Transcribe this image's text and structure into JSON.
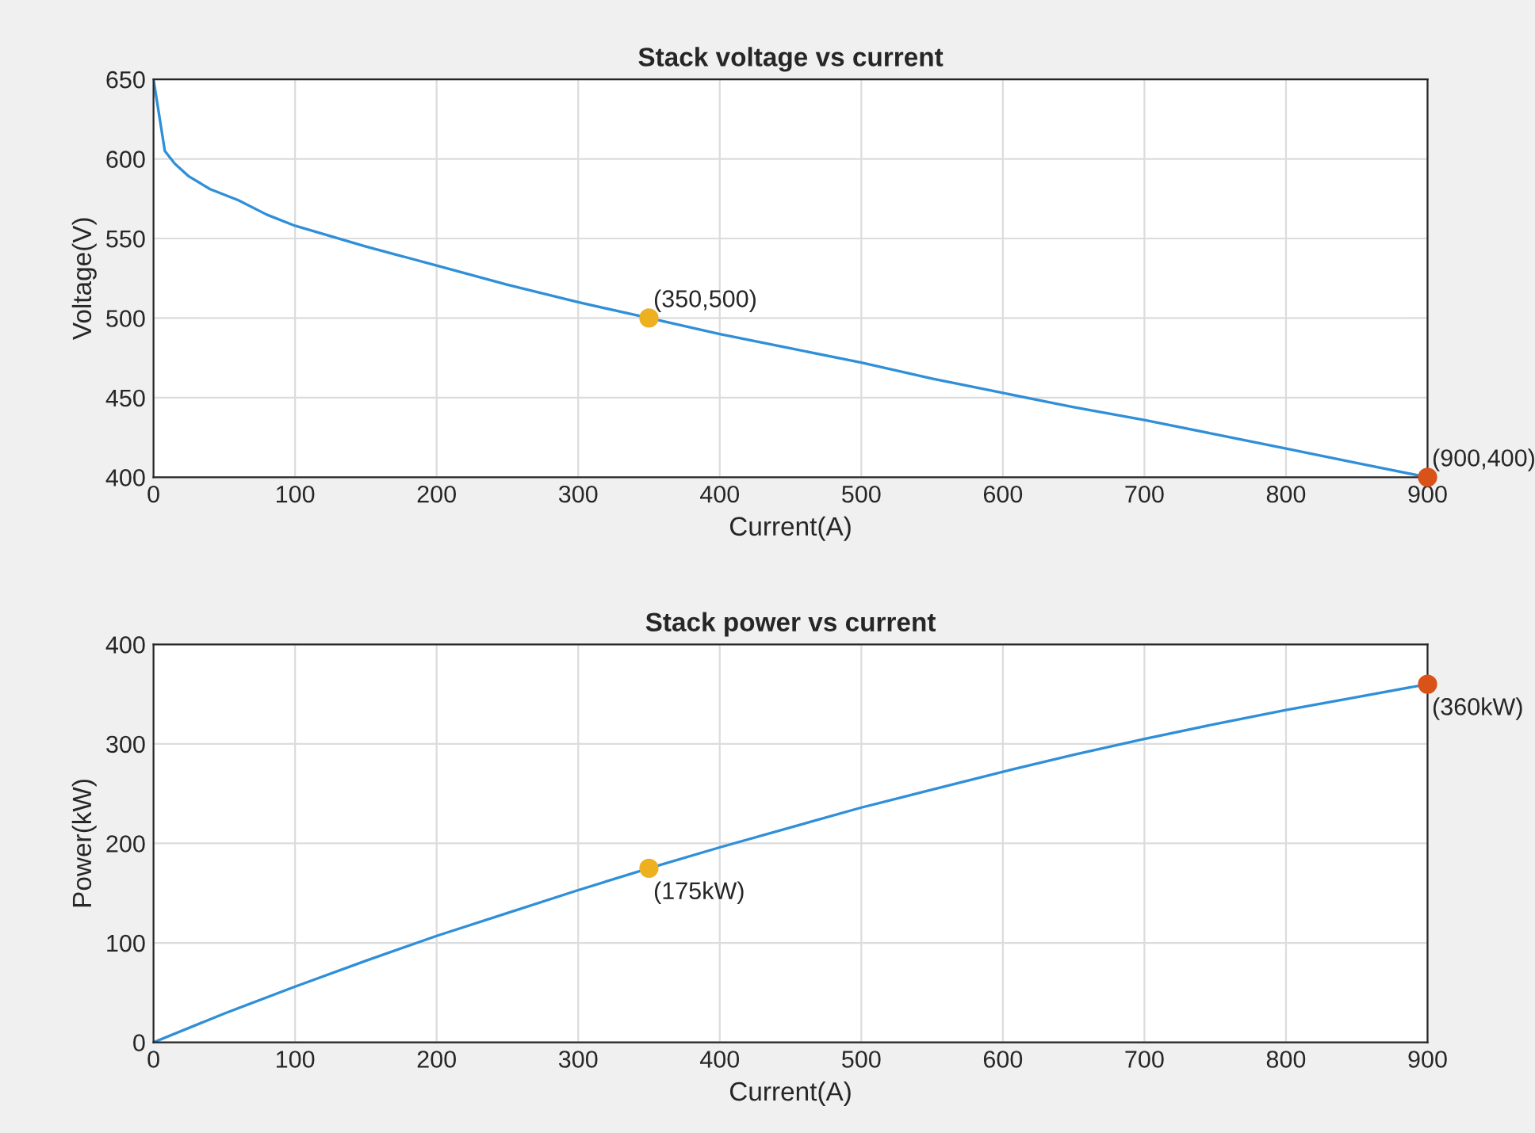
{
  "chart_data": [
    {
      "type": "line",
      "title": "Stack voltage vs current",
      "xlabel": "Current(A)",
      "ylabel": "Voltage(V)",
      "xlim": [
        0,
        900
      ],
      "ylim": [
        400,
        650
      ],
      "xticks": [
        0,
        100,
        200,
        300,
        400,
        500,
        600,
        700,
        800,
        900
      ],
      "yticks": [
        400,
        450,
        500,
        550,
        600,
        650
      ],
      "grid": true,
      "legend": false,
      "series": [
        {
          "color": "#2f8fd8",
          "x": [
            0,
            8,
            15,
            25,
            40,
            60,
            80,
            100,
            150,
            200,
            250,
            300,
            350,
            400,
            450,
            500,
            550,
            600,
            650,
            700,
            750,
            800,
            850,
            900
          ],
          "values": [
            650,
            605,
            597,
            589,
            581,
            574,
            565,
            558,
            545,
            533,
            521,
            510,
            500,
            490,
            481,
            472,
            462,
            453,
            444,
            436,
            427,
            418,
            409,
            400
          ]
        },
        {
          "type": "scatter",
          "marker": "circle",
          "x": [
            350,
            900
          ],
          "values": [
            500,
            400
          ],
          "colors": [
            "#edb120",
            "#d95319"
          ]
        }
      ],
      "annotations": [
        "(350,500)",
        "(900,400)"
      ]
    },
    {
      "type": "line",
      "title": "Stack power vs current",
      "xlabel": "Current(A)",
      "ylabel": "Power(kW)",
      "xlim": [
        0,
        900
      ],
      "ylim": [
        0,
        400
      ],
      "xticks": [
        0,
        100,
        200,
        300,
        400,
        500,
        600,
        700,
        800,
        900
      ],
      "yticks": [
        0,
        100,
        200,
        300,
        400
      ],
      "grid": true,
      "legend": false,
      "series": [
        {
          "color": "#2f8fd8",
          "x": [
            0,
            50,
            100,
            150,
            200,
            250,
            300,
            350,
            400,
            450,
            500,
            550,
            600,
            650,
            700,
            750,
            800,
            850,
            900
          ],
          "values": [
            0,
            29,
            56,
            82,
            107,
            130,
            153,
            175,
            196,
            216,
            236,
            254,
            272,
            289,
            305,
            320,
            334,
            347,
            360
          ]
        },
        {
          "type": "scatter",
          "marker": "circle",
          "x": [
            350,
            900
          ],
          "values": [
            175,
            360
          ],
          "colors": [
            "#edb120",
            "#d95319"
          ]
        }
      ],
      "annotations": [
        "(175kW)",
        "(360kW)"
      ]
    }
  ]
}
